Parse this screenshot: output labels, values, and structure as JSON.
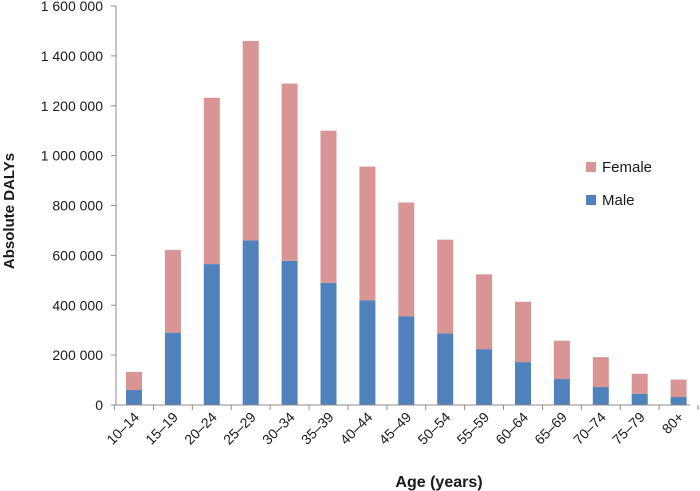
{
  "chart_data": {
    "type": "bar",
    "stacked": true,
    "title": "",
    "xlabel": "Age (years)",
    "ylabel": "Absolute DALYs",
    "ylim": [
      0,
      1600000
    ],
    "yticks": [
      0,
      200000,
      400000,
      600000,
      800000,
      1000000,
      1200000,
      1400000,
      1600000
    ],
    "ytick_labels": [
      "0",
      "200 000",
      "400 000",
      "600 000",
      "800 000",
      "1 000 000",
      "1 200 000",
      "1 400 000",
      "1 600 000"
    ],
    "categories": [
      "10–14",
      "15–19",
      "20–24",
      "25–29",
      "30–34",
      "35–39",
      "40–44",
      "45–49",
      "50–54",
      "55–59",
      "60–64",
      "65–69",
      "70–74",
      "75–79",
      "80+"
    ],
    "series": [
      {
        "name": "Male",
        "color": "#4f81bd",
        "values": [
          60000,
          290000,
          565000,
          660000,
          578000,
          490000,
          420000,
          355000,
          287000,
          224000,
          172000,
          104000,
          72000,
          45000,
          32000
        ]
      },
      {
        "name": "Female",
        "color": "#d99594",
        "values": [
          73000,
          332000,
          667000,
          800000,
          711000,
          610000,
          536000,
          457000,
          376000,
          300000,
          242000,
          154000,
          120000,
          80000,
          70000
        ]
      }
    ],
    "legend": {
      "position": "right",
      "order": [
        "Female",
        "Male"
      ]
    },
    "grid": false
  }
}
